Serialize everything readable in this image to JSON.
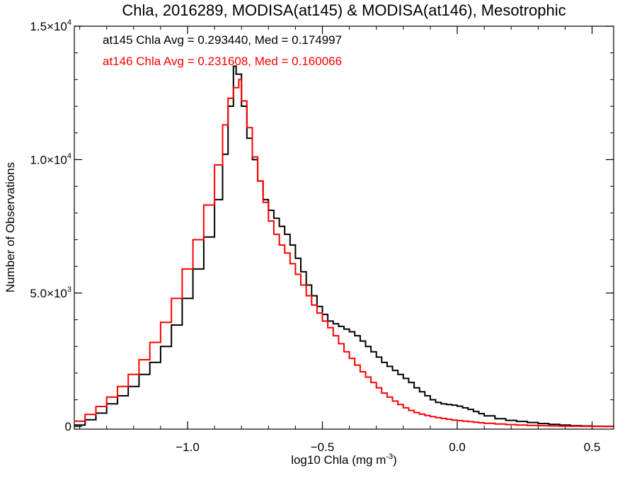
{
  "chart_data": {
    "type": "line",
    "step": true,
    "title": "Chla, 2016289, MODISA(at145) & MODISA(at146), Mesotrophic",
    "xlabel": "log10 Chla (mg m",
    "xlabel_sup": "-3",
    "xlabel_tail": ")",
    "ylabel": "Number of Observations",
    "xlim": [
      -1.42,
      0.58
    ],
    "ylim": [
      -100,
      15000
    ],
    "xticks": [
      {
        "value": -1.0,
        "label": "−1.0"
      },
      {
        "value": -0.5,
        "label": "−0.5"
      },
      {
        "value": 0.0,
        "label": "0.0"
      },
      {
        "value": 0.5,
        "label": "0.5"
      }
    ],
    "yticks": [
      {
        "value": 0,
        "label": "0",
        "sup": ""
      },
      {
        "value": 5000,
        "label": "5.0×10",
        "sup": "3"
      },
      {
        "value": 10000,
        "label": "1.0×10",
        "sup": "4"
      },
      {
        "value": 15000,
        "label": "1.5×10",
        "sup": "4"
      }
    ],
    "x_minor_step": 0.1,
    "y_minor_step": 1000,
    "grid": false,
    "annotations": [
      {
        "text": "at145 Chla Avg = 0.293440, Med = 0.174997",
        "color": "#000000"
      },
      {
        "text": "at146 Chla Avg = 0.231608, Med = 0.160066",
        "color": "#ff0000"
      }
    ],
    "series": [
      {
        "color": "#000000",
        "x": [
          -1.42,
          -1.38,
          -1.34,
          -1.3,
          -1.26,
          -1.22,
          -1.18,
          -1.14,
          -1.1,
          -1.06,
          -1.02,
          -0.98,
          -0.94,
          -0.9,
          -0.87,
          -0.85,
          -0.83,
          -0.82,
          -0.8,
          -0.78,
          -0.76,
          -0.74,
          -0.72,
          -0.7,
          -0.68,
          -0.66,
          -0.64,
          -0.62,
          -0.6,
          -0.58,
          -0.56,
          -0.54,
          -0.52,
          -0.5,
          -0.48,
          -0.46,
          -0.44,
          -0.42,
          -0.4,
          -0.38,
          -0.36,
          -0.34,
          -0.32,
          -0.3,
          -0.28,
          -0.26,
          -0.24,
          -0.22,
          -0.2,
          -0.18,
          -0.16,
          -0.14,
          -0.12,
          -0.1,
          -0.08,
          -0.06,
          -0.04,
          -0.02,
          0.0,
          0.02,
          0.04,
          0.06,
          0.08,
          0.1,
          0.14,
          0.18,
          0.22,
          0.26,
          0.3,
          0.34,
          0.38,
          0.42,
          0.46,
          0.5,
          0.54,
          0.58
        ],
        "y": [
          50,
          250,
          500,
          850,
          1150,
          1500,
          1950,
          2400,
          3000,
          3800,
          4800,
          5900,
          7100,
          8500,
          10200,
          12000,
          13500,
          13200,
          12000,
          10800,
          10000,
          9200,
          8500,
          8100,
          7800,
          7500,
          7200,
          6800,
          6300,
          5800,
          5300,
          4900,
          4500,
          4200,
          3950,
          3850,
          3750,
          3650,
          3550,
          3400,
          3200,
          3000,
          2800,
          2600,
          2400,
          2250,
          2100,
          1950,
          1800,
          1650,
          1450,
          1300,
          1150,
          1000,
          900,
          850,
          820,
          800,
          760,
          700,
          640,
          560,
          480,
          400,
          290,
          230,
          190,
          150,
          110,
          80,
          50,
          30,
          20,
          10,
          5,
          0
        ]
      },
      {
        "color": "#ff0000",
        "x": [
          -1.42,
          -1.38,
          -1.34,
          -1.3,
          -1.26,
          -1.22,
          -1.18,
          -1.14,
          -1.1,
          -1.06,
          -1.02,
          -0.98,
          -0.94,
          -0.9,
          -0.87,
          -0.85,
          -0.83,
          -0.81,
          -0.8,
          -0.78,
          -0.76,
          -0.74,
          -0.72,
          -0.7,
          -0.68,
          -0.66,
          -0.64,
          -0.62,
          -0.6,
          -0.58,
          -0.56,
          -0.54,
          -0.52,
          -0.5,
          -0.48,
          -0.46,
          -0.44,
          -0.42,
          -0.4,
          -0.38,
          -0.36,
          -0.34,
          -0.32,
          -0.3,
          -0.28,
          -0.26,
          -0.24,
          -0.22,
          -0.2,
          -0.18,
          -0.16,
          -0.14,
          -0.12,
          -0.1,
          -0.08,
          -0.06,
          -0.04,
          -0.02,
          0.0,
          0.02,
          0.04,
          0.06,
          0.08,
          0.1,
          0.14,
          0.18,
          0.22,
          0.26,
          0.3,
          0.34,
          0.38,
          0.42,
          0.46,
          0.5,
          0.54,
          0.58
        ],
        "y": [
          200,
          450,
          750,
          1100,
          1500,
          1950,
          2500,
          3150,
          3900,
          4800,
          5900,
          7000,
          8300,
          9800,
          11300,
          12300,
          12700,
          13000,
          12200,
          11200,
          10100,
          9200,
          8400,
          7700,
          7200,
          6800,
          6500,
          6100,
          5700,
          5300,
          4900,
          4550,
          4250,
          3950,
          3700,
          3400,
          3100,
          2800,
          2550,
          2300,
          2050,
          1850,
          1650,
          1450,
          1250,
          1100,
          950,
          820,
          700,
          600,
          520,
          460,
          410,
          370,
          330,
          300,
          270,
          240,
          220,
          200,
          180,
          160,
          140,
          120,
          90,
          70,
          50,
          40,
          30,
          20,
          15,
          10,
          5,
          3,
          1,
          0
        ]
      }
    ]
  }
}
